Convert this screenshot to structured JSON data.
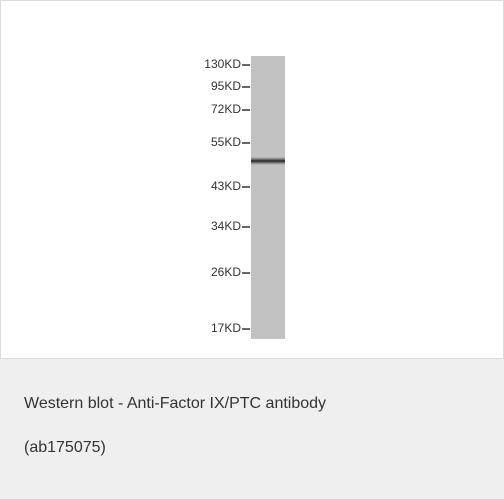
{
  "figure": {
    "markers": [
      "130KD",
      "95KD",
      "72KD",
      "55KD",
      "43KD",
      "34KD",
      "26KD",
      "17KD"
    ],
    "caption": {
      "line1": "Western blot - Anti-Factor IX/PTC antibody",
      "line2": "(ab175075)"
    }
  }
}
